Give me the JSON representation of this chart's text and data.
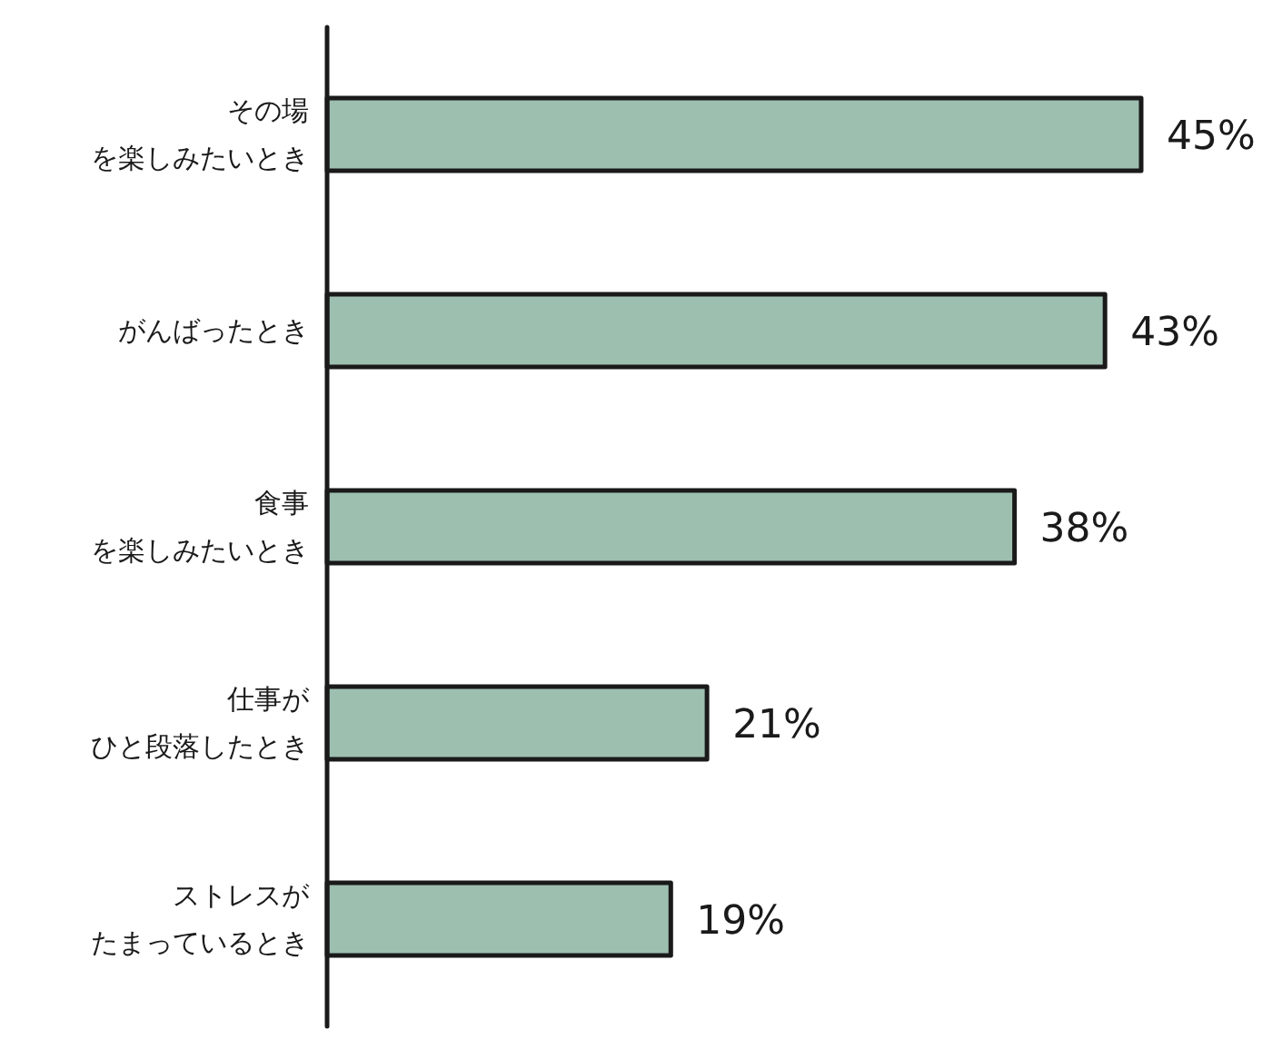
{
  "chart_data": {
    "type": "bar",
    "orientation": "horizontal",
    "categories": [
      "その場を楽しみたいとき",
      "がんばったとき",
      "食事を楽しみたいとき",
      "仕事がひと段落したとき",
      "ストレスがたまっているとき"
    ],
    "values": [
      45,
      43,
      38,
      21,
      19
    ],
    "value_labels": [
      "45%",
      "43%",
      "38%",
      "21%",
      "19%"
    ],
    "color": "#9dbfb0"
  }
}
